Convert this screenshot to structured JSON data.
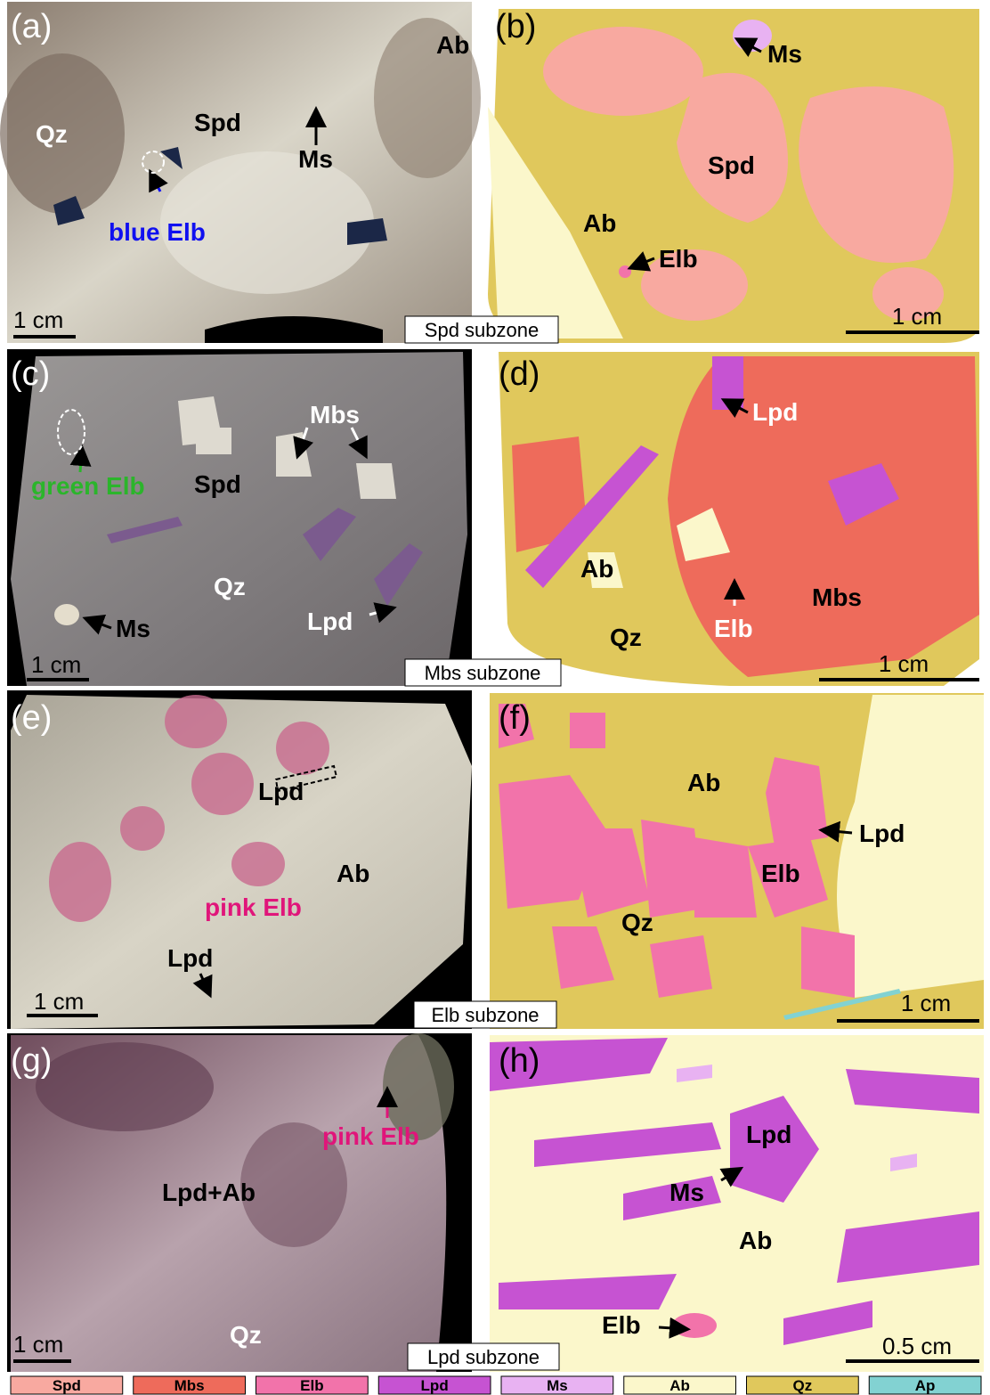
{
  "panels": [
    {
      "label": "(a)",
      "annotations": [
        "Ab",
        "Qz",
        "Spd",
        "Ms",
        "blue Elb"
      ],
      "scale_bar": "1 cm",
      "subzone": "Spd subzone"
    },
    {
      "label": "(b)",
      "annotations": [
        "Ms",
        "Spd",
        "Ab",
        "Elb"
      ],
      "scale_bar": "1 cm"
    },
    {
      "label": "(c)",
      "annotations": [
        "Mbs",
        "green Elb",
        "Spd",
        "Qz",
        "Ms",
        "Lpd"
      ],
      "scale_bar": "1 cm",
      "subzone": "Mbs subzone"
    },
    {
      "label": "(d)",
      "annotations": [
        "Lpd",
        "Ab",
        "Elb",
        "Mbs",
        "Qz"
      ],
      "scale_bar": "1 cm"
    },
    {
      "label": "(e)",
      "annotations": [
        "Lpd",
        "Ab",
        "pink Elb",
        "Lpd"
      ],
      "scale_bar": "1 cm",
      "subzone": "Elb subzone"
    },
    {
      "label": "(f)",
      "annotations": [
        "Ab",
        "Lpd",
        "Elb",
        "Qz"
      ],
      "scale_bar": "1 cm"
    },
    {
      "label": "(g)",
      "annotations": [
        "pink Elb",
        "Lpd+Ab",
        "Qz"
      ],
      "scale_bar": "1 cm",
      "subzone": "Lpd subzone"
    },
    {
      "label": "(h)",
      "annotations": [
        "Lpd",
        "Ms",
        "Ab",
        "Elb"
      ],
      "scale_bar": "0.5 cm"
    }
  ],
  "legend": [
    {
      "name": "Spd",
      "color": "#f8a9a0"
    },
    {
      "name": "Mbs",
      "color": "#ee6b5b"
    },
    {
      "name": "Elb",
      "color": "#f273aa"
    },
    {
      "name": "Lpd",
      "color": "#c653d2"
    },
    {
      "name": "Ms",
      "color": "#e8b2f2"
    },
    {
      "name": "Ab",
      "color": "#fbf7cb"
    },
    {
      "name": "Qz",
      "color": "#e0c85c"
    },
    {
      "name": "Ap",
      "color": "#82d2d2"
    }
  ]
}
